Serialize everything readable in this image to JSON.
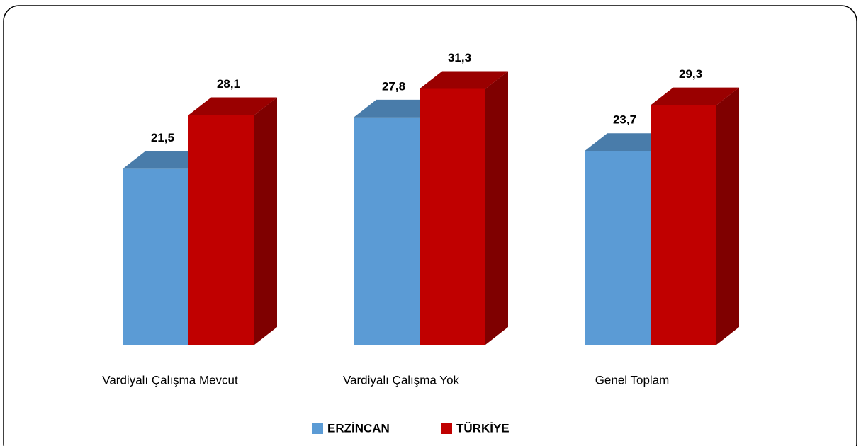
{
  "chart_data": {
    "type": "bar3d",
    "categories": [
      "Vardiyalı Çalışma Mevcut",
      "Vardiyalı Çalışma Yok",
      "Genel Toplam"
    ],
    "series": [
      {
        "name": "ERZİNCAN",
        "color": "#5b9bd5",
        "values": [
          21.5,
          27.8,
          23.7
        ],
        "value_labels": [
          "21,5",
          "27,8",
          "23,7"
        ]
      },
      {
        "name": "TÜRKİYE",
        "color": "#c00000",
        "values": [
          28.1,
          31.3,
          29.3
        ],
        "value_labels": [
          "28,1",
          "31,3",
          "29,3"
        ]
      }
    ],
    "legend": "bottom"
  }
}
